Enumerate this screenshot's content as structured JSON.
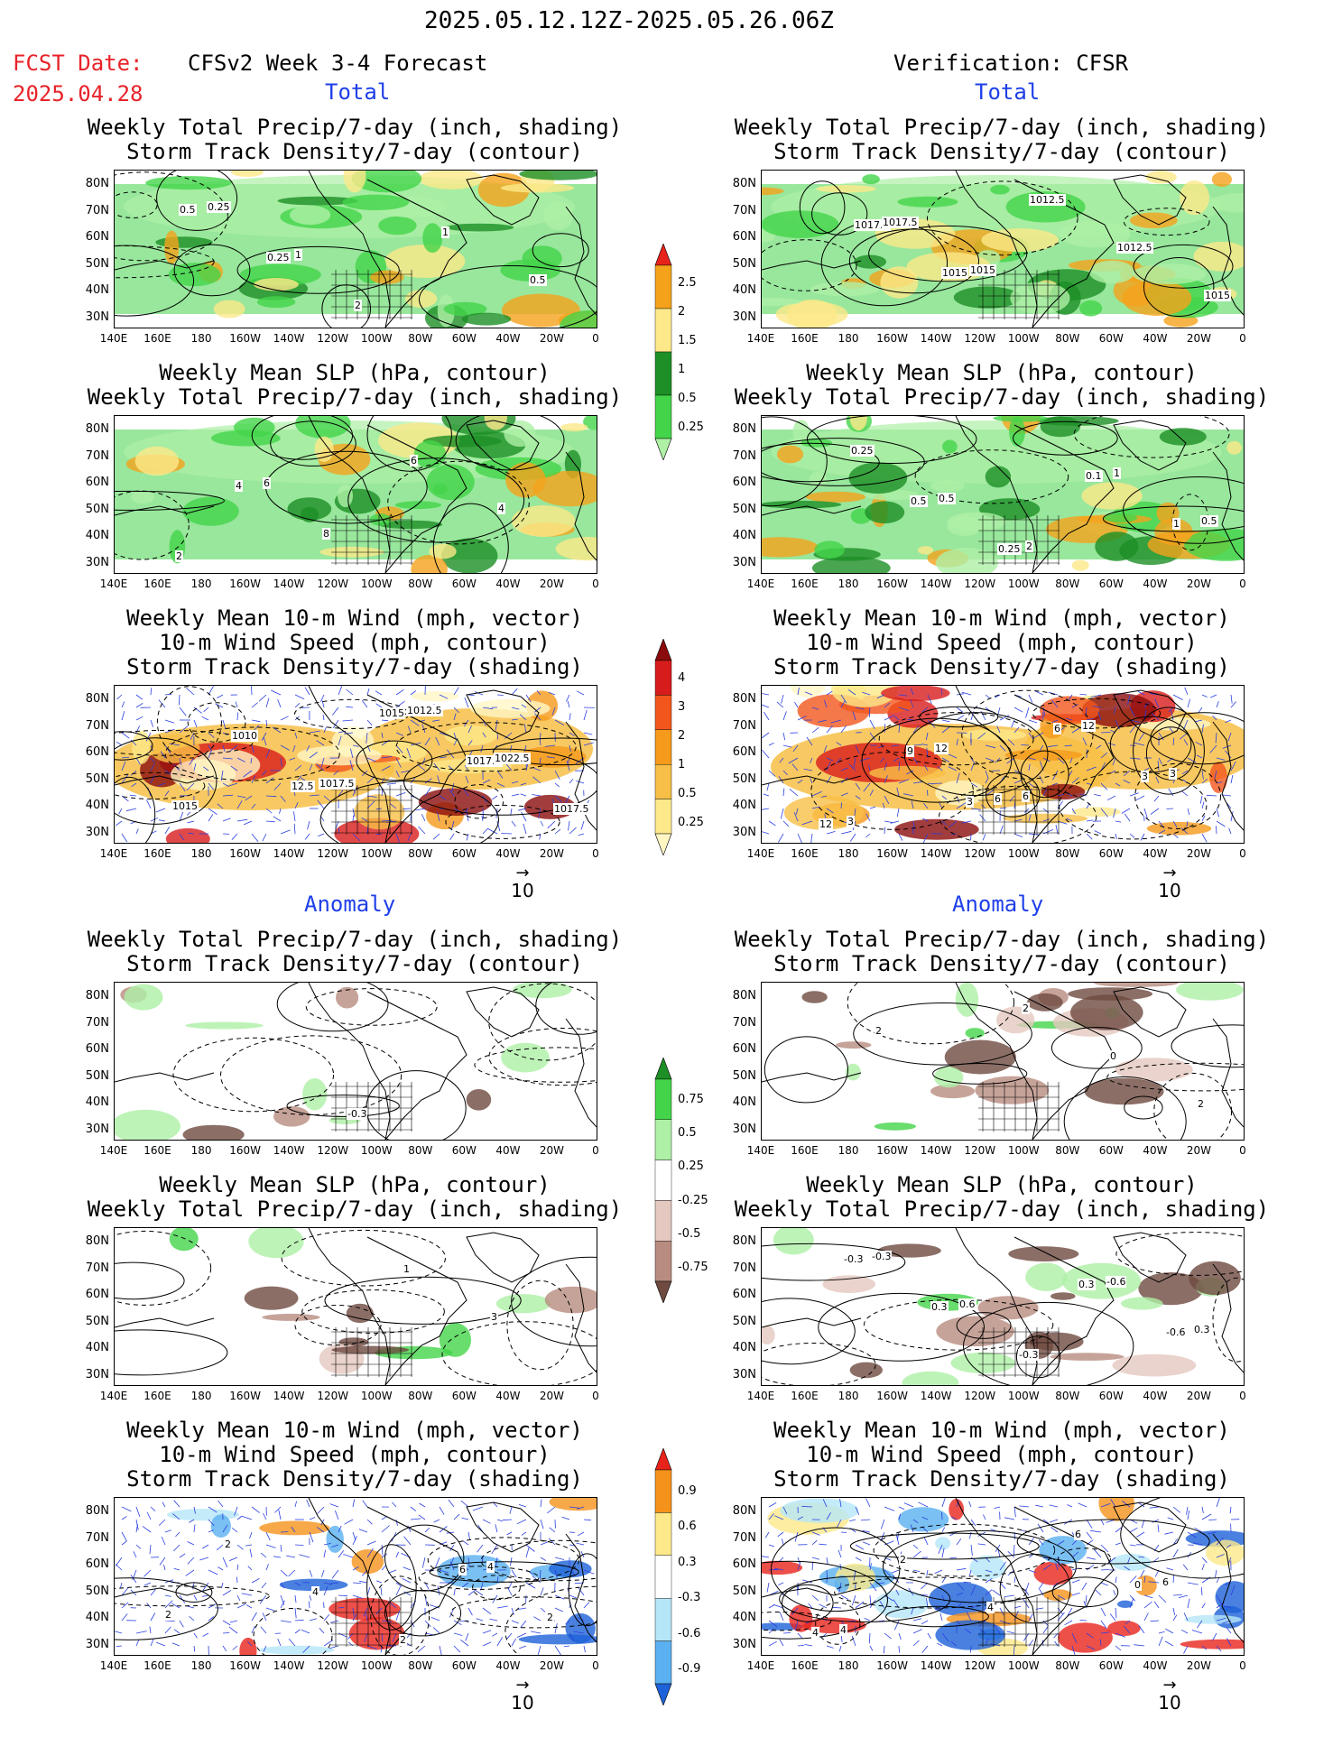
{
  "header": {
    "date_range": "2025.05.12.12Z-2025.05.26.06Z",
    "fcst_label": "FCST Date:",
    "fcst_date": "2025.04.28",
    "left_title": "CFSv2 Week 3-4 Forecast",
    "right_title": "Verification: CFSR"
  },
  "sections": {
    "total": "Total",
    "anomaly": "Anomaly"
  },
  "panel_titles": {
    "precip_storm": [
      "Weekly Total Precip/7-day (inch, shading)",
      "Storm Track Density/7-day (contour)"
    ],
    "slp_precip": [
      "Weekly Mean SLP (hPa, contour)",
      "Weekly Total Precip/7-day (inch, shading)"
    ],
    "wind_storm": [
      "Weekly Mean 10-m Wind (mph, vector)",
      "10-m Wind Speed (mph, contour)",
      "Storm Track Density/7-day (shading)"
    ]
  },
  "lat_labels": [
    "80N",
    "70N",
    "60N",
    "50N",
    "40N",
    "30N"
  ],
  "lon_labels": [
    "140E",
    "160E",
    "180",
    "160W",
    "140W",
    "120W",
    "100W",
    "80W",
    "60W",
    "40W",
    "20W",
    "0"
  ],
  "reference_vector": "10",
  "colorbars": {
    "total_precip": {
      "labels": [
        "2.5",
        "2",
        "1.5",
        "1",
        "0.5",
        "0.25"
      ],
      "colors": [
        "#e8231b",
        "#f5a21b",
        "#fde98a",
        "#1d8f26",
        "#44d44a",
        "#aef0a6"
      ]
    },
    "total_storm": {
      "labels": [
        "4",
        "3",
        "2",
        "1",
        "0.5",
        "0.25"
      ],
      "colors": [
        "#8b0c0c",
        "#d81c1c",
        "#f2561d",
        "#f59a1b",
        "#f7bf47",
        "#fde98a",
        "#fff6c4"
      ]
    },
    "anom_precip": {
      "labels": [
        "0.75",
        "0.5",
        "0.25",
        "-0.25",
        "-0.5",
        "-0.75"
      ],
      "colors": [
        "#1d8f26",
        "#44d44a",
        "#aef0a6",
        "#ffffff",
        "#e5c8bf",
        "#b88c80",
        "#6e4a40"
      ]
    },
    "anom_storm": {
      "labels": [
        "0.9",
        "0.6",
        "0.3",
        "-0.3",
        "-0.6",
        "-0.9"
      ],
      "colors": [
        "#e8231b",
        "#f5921b",
        "#fde98a",
        "#ffffff",
        "#b5e6f7",
        "#5ab0f0",
        "#1d62d8"
      ]
    }
  },
  "contour_labels": {
    "p1": [
      "0.5",
      "0.25",
      "2",
      "1",
      "0.5",
      "0.25",
      "1"
    ],
    "p2": [
      "1017.5",
      "1015",
      "1012.5",
      "1012.5",
      "1015",
      "1017.5",
      "1015"
    ],
    "p3": [
      "4",
      "8",
      "6",
      "4",
      "2",
      "6"
    ],
    "p4": [
      "0.5",
      "0.25",
      "0.1",
      "1",
      "0.25",
      "0.5",
      "2",
      "1",
      "0.5"
    ],
    "p5": [
      "12.5",
      "1015",
      "1017.5",
      "1017.5",
      "1010",
      "1017.5",
      "1012.5",
      "1022.5",
      "1015"
    ],
    "p6": [
      "3",
      "6",
      "3",
      "12",
      "9",
      "6",
      "12",
      "3",
      "3",
      "12",
      "6"
    ],
    "p7": [
      "-0.3"
    ],
    "p8": [
      "2",
      "0",
      "2",
      "2"
    ],
    "p9": [
      "1",
      "3"
    ],
    "p10": [
      "0.3",
      "-0.6",
      "-0.3",
      "0.3",
      "-0.3",
      "-0.6",
      "0.3",
      "-0.3",
      "0.6"
    ],
    "p11": [
      "6",
      "2",
      "2",
      "4",
      "2",
      "4",
      "2"
    ],
    "p12": [
      "0",
      "4",
      "2",
      "4",
      "6",
      "6",
      "4"
    ]
  }
}
